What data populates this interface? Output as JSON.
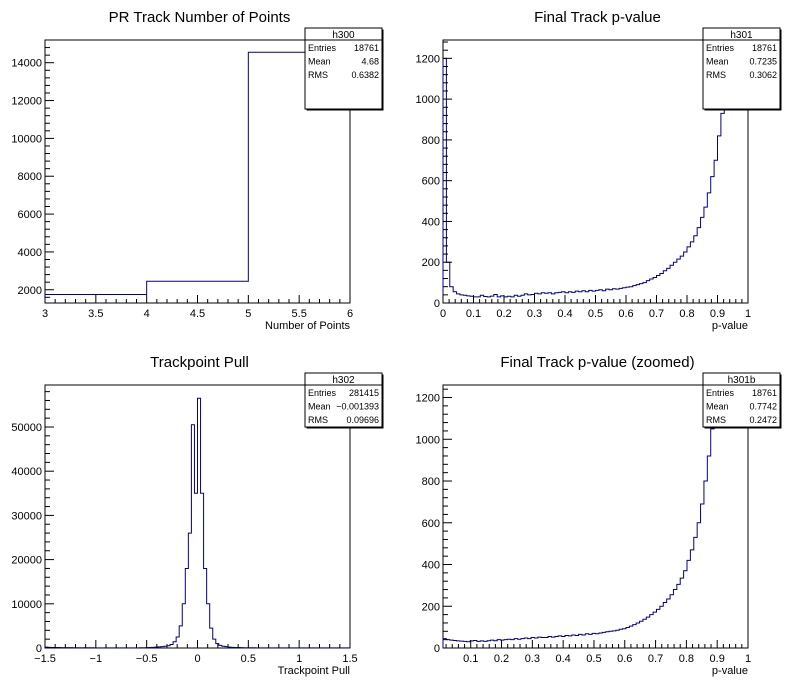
{
  "chart_data": [
    {
      "id": "h300",
      "type": "histogram",
      "title": "PR Track Number of Points",
      "xlabel": "Number of Points",
      "ylabel": "",
      "xlim": [
        3,
        6
      ],
      "ylim": [
        1300,
        15200
      ],
      "xticks": [
        3,
        3.5,
        4,
        4.5,
        5,
        5.5,
        6
      ],
      "xtick_labels": [
        "3",
        "3.5",
        "4",
        "4.5",
        "5",
        "5.5",
        "6"
      ],
      "yticks": [
        2000,
        4000,
        6000,
        8000,
        10000,
        12000,
        14000
      ],
      "ytick_labels": [
        "2000",
        "4000",
        "6000",
        "8000",
        "10000",
        "12000",
        "14000"
      ],
      "bin_edges": [
        3,
        4,
        5,
        6
      ],
      "counts": [
        1750,
        2450,
        14550
      ],
      "line_color": "#00008b",
      "stats": {
        "name": "h300",
        "rows": [
          {
            "label": "Entries",
            "value": "18761"
          },
          {
            "label": "Mean",
            "value": "4.68"
          },
          {
            "label": "RMS",
            "value": "0.6382"
          }
        ]
      }
    },
    {
      "id": "h301",
      "type": "histogram",
      "title": "Final Track p-value",
      "xlabel": "p-value",
      "ylabel": "",
      "xlim": [
        0,
        1
      ],
      "ylim": [
        0,
        1290
      ],
      "xticks": [
        0,
        0.1,
        0.2,
        0.3,
        0.4,
        0.5,
        0.6,
        0.7,
        0.8,
        0.9,
        1
      ],
      "xtick_labels": [
        "0",
        "0.1",
        "0.2",
        "0.3",
        "0.4",
        "0.5",
        "0.6",
        "0.7",
        "0.8",
        "0.9",
        "1"
      ],
      "yticks": [
        0,
        200,
        400,
        600,
        800,
        1000,
        1200
      ],
      "ytick_labels": [
        "0",
        "200",
        "400",
        "600",
        "800",
        "1000",
        "1200"
      ],
      "bin_range": [
        0,
        1
      ],
      "counts": [
        1200,
        200,
        80,
        55,
        45,
        40,
        38,
        35,
        33,
        30,
        30,
        38,
        32,
        30,
        34,
        42,
        30,
        35,
        30,
        33,
        30,
        38,
        33,
        38,
        45,
        40,
        42,
        48,
        45,
        50,
        48,
        50,
        45,
        50,
        52,
        55,
        50,
        55,
        52,
        58,
        55,
        60,
        55,
        62,
        58,
        62,
        65,
        60,
        68,
        65,
        70,
        68,
        72,
        75,
        78,
        80,
        85,
        90,
        95,
        100,
        110,
        118,
        125,
        135,
        145,
        158,
        170,
        185,
        200,
        215,
        230,
        250,
        275,
        300,
        330,
        370,
        420,
        470,
        540,
        620,
        700,
        820,
        930,
        1050,
        1290,
        1290,
        1290,
        1290,
        1290,
        1290
      ],
      "line_color": "#00008b",
      "stats": {
        "name": "h301",
        "rows": [
          {
            "label": "Entries",
            "value": "18761"
          },
          {
            "label": "Mean",
            "value": "0.7235"
          },
          {
            "label": "RMS",
            "value": "0.3062"
          }
        ]
      }
    },
    {
      "id": "h302",
      "type": "histogram",
      "title": "Trackpoint Pull",
      "xlabel": "Trackpoint Pull",
      "ylabel": "",
      "xlim": [
        -1.5,
        1.5
      ],
      "ylim": [
        0,
        59500
      ],
      "xticks": [
        -1.5,
        -1,
        -0.5,
        0,
        0.5,
        1,
        1.5
      ],
      "xtick_labels": [
        "−1.5",
        "−1",
        "−0.5",
        "0",
        "0.5",
        "1",
        "1.5"
      ],
      "yticks": [
        0,
        10000,
        20000,
        30000,
        40000,
        50000
      ],
      "ytick_labels": [
        "0",
        "10000",
        "20000",
        "30000",
        "40000",
        "50000"
      ],
      "bin_range": [
        -1.5,
        1.5
      ],
      "counts": [
        200,
        150,
        120,
        100,
        100,
        90,
        90,
        80,
        80,
        70,
        70,
        60,
        60,
        50,
        50,
        50,
        40,
        40,
        40,
        30,
        30,
        30,
        30,
        20,
        20,
        20,
        20,
        20,
        30,
        30,
        40,
        50,
        60,
        80,
        100,
        150,
        200,
        250,
        300,
        400,
        500,
        800,
        1400,
        2500,
        5000,
        10000,
        18000,
        26000,
        50500,
        35000,
        56500,
        35000,
        18000,
        10000,
        4500,
        2000,
        1000,
        600,
        400,
        300,
        200,
        150,
        120,
        100,
        80,
        70,
        60,
        50,
        50,
        40,
        40,
        40,
        30,
        30,
        30,
        30,
        20,
        20,
        20,
        20,
        20,
        20,
        20,
        20,
        20,
        20,
        20,
        20,
        20,
        20,
        20,
        20,
        20,
        20,
        20,
        20,
        20,
        20,
        20,
        20
      ],
      "line_color": "#00008b",
      "stats": {
        "name": "h302",
        "rows": [
          {
            "label": "Entries",
            "value": "281415"
          },
          {
            "label": "Mean",
            "value": "−0.001393"
          },
          {
            "label": "RMS",
            "value": "0.09696"
          }
        ]
      }
    },
    {
      "id": "h301b",
      "type": "histogram",
      "title": "Final Track p-value (zoomed)",
      "xlabel": "p-value",
      "ylabel": "",
      "xlim": [
        0.01,
        1
      ],
      "ylim": [
        0,
        1260
      ],
      "xticks": [
        0.1,
        0.2,
        0.3,
        0.4,
        0.5,
        0.6,
        0.7,
        0.8,
        0.9,
        1
      ],
      "xtick_labels": [
        "0.1",
        "0.2",
        "0.3",
        "0.4",
        "0.5",
        "0.6",
        "0.7",
        "0.8",
        "0.9",
        "1"
      ],
      "yticks": [
        0,
        200,
        400,
        600,
        800,
        1000,
        1200
      ],
      "ytick_labels": [
        "0",
        "200",
        "400",
        "600",
        "800",
        "1000",
        "1200"
      ],
      "bin_range": [
        0.01,
        1
      ],
      "counts": [
        45,
        40,
        38,
        36,
        34,
        33,
        32,
        30,
        34,
        36,
        32,
        34,
        32,
        35,
        38,
        35,
        40,
        38,
        40,
        42,
        40,
        45,
        42,
        45,
        48,
        45,
        50,
        48,
        52,
        50,
        50,
        55,
        52,
        55,
        58,
        55,
        60,
        58,
        62,
        60,
        65,
        62,
        68,
        65,
        70,
        68,
        72,
        75,
        78,
        80,
        82,
        85,
        90,
        92,
        98,
        105,
        112,
        120,
        128,
        138,
        148,
        160,
        172,
        185,
        200,
        218,
        235,
        255,
        280,
        305,
        335,
        370,
        420,
        470,
        530,
        600,
        690,
        800,
        920,
        1050,
        1260,
        1260,
        1260,
        1260,
        1260,
        1260,
        1260,
        1260,
        1260,
        1260
      ],
      "line_color": "#00008b",
      "stats": {
        "name": "h301b",
        "rows": [
          {
            "label": "Entries",
            "value": "18761"
          },
          {
            "label": "Mean",
            "value": "0.7742"
          },
          {
            "label": "RMS",
            "value": "0.2472"
          }
        ]
      }
    }
  ]
}
